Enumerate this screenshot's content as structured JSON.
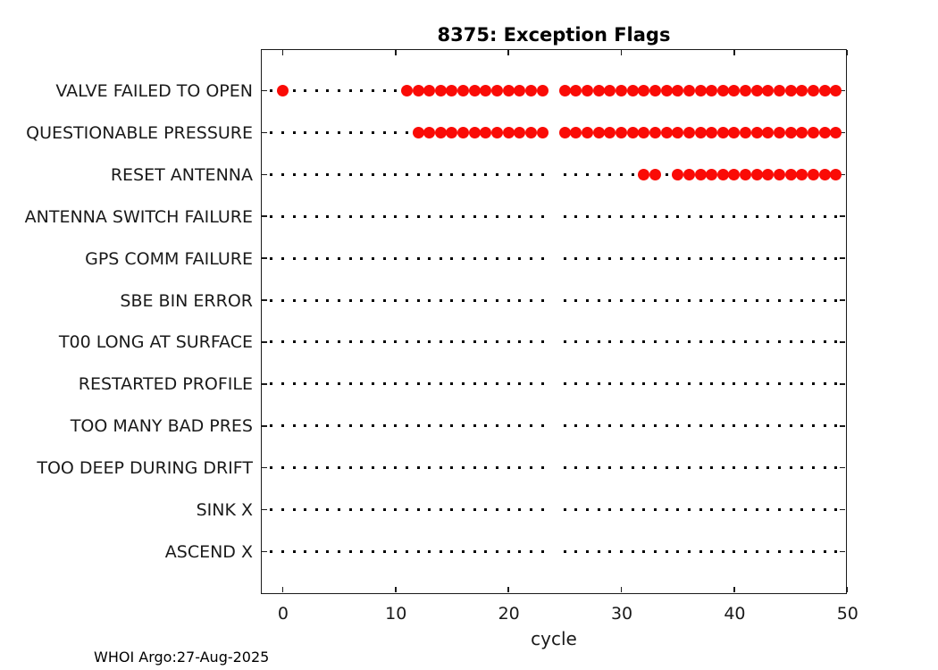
{
  "figure": {
    "footer": "WHOI Argo:27-Aug-2025"
  },
  "chart_data": {
    "type": "scatter",
    "title": "8375: Exception Flags",
    "xlabel": "cycle",
    "xlim": [
      -2,
      50
    ],
    "xticks": [
      0,
      10,
      20,
      30,
      40,
      50
    ],
    "xtick_labels": [
      "0",
      "10",
      "20",
      "30",
      "40",
      "50"
    ],
    "grid": "dotted horizontal baseline per category",
    "legend_position": "none",
    "marker_color": "#fa0b06",
    "baseline_color": "#000000",
    "axis_color": "#1a1a1a",
    "categories": [
      "VALVE FAILED TO OPEN",
      "QUESTIONABLE PRESSURE",
      "RESET ANTENNA",
      "ANTENNA SWITCH FAILURE",
      "GPS COMM FAILURE",
      "SBE BIN ERROR",
      "T00 LONG AT SURFACE",
      "RESTARTED PROFILE",
      "TOO MANY BAD PRES",
      "TOO DEEP DURING DRIFT",
      "SINK X",
      "ASCEND X"
    ],
    "baseline_cycles": [
      -1,
      0,
      1,
      2,
      3,
      4,
      5,
      6,
      7,
      8,
      9,
      10,
      11,
      12,
      13,
      14,
      15,
      16,
      17,
      18,
      19,
      20,
      21,
      22,
      23,
      25,
      26,
      27,
      28,
      29,
      30,
      31,
      32,
      33,
      34,
      35,
      36,
      37,
      38,
      39,
      40,
      41,
      42,
      43,
      44,
      45,
      46,
      47,
      48,
      49
    ],
    "series": [
      {
        "name": "VALVE FAILED TO OPEN",
        "cycles": [
          0,
          11,
          12,
          13,
          14,
          15,
          16,
          17,
          18,
          19,
          20,
          21,
          22,
          23,
          25,
          26,
          27,
          28,
          29,
          30,
          31,
          32,
          33,
          34,
          35,
          36,
          37,
          38,
          39,
          40,
          41,
          42,
          43,
          44,
          45,
          46,
          47,
          48,
          49
        ]
      },
      {
        "name": "QUESTIONABLE PRESSURE",
        "cycles": [
          12,
          13,
          14,
          15,
          16,
          17,
          18,
          19,
          20,
          21,
          22,
          23,
          25,
          26,
          27,
          28,
          29,
          30,
          31,
          32,
          33,
          34,
          35,
          36,
          37,
          38,
          39,
          40,
          41,
          42,
          43,
          44,
          45,
          46,
          47,
          48,
          49
        ]
      },
      {
        "name": "RESET ANTENNA",
        "cycles": [
          32,
          33,
          35,
          36,
          37,
          38,
          39,
          40,
          41,
          42,
          43,
          44,
          45,
          46,
          47,
          48,
          49
        ]
      },
      {
        "name": "ANTENNA SWITCH FAILURE",
        "cycles": []
      },
      {
        "name": "GPS COMM FAILURE",
        "cycles": []
      },
      {
        "name": "SBE BIN ERROR",
        "cycles": []
      },
      {
        "name": "T00 LONG AT SURFACE",
        "cycles": []
      },
      {
        "name": "RESTARTED PROFILE",
        "cycles": []
      },
      {
        "name": "TOO MANY BAD PRES",
        "cycles": []
      },
      {
        "name": "TOO DEEP DURING DRIFT",
        "cycles": []
      },
      {
        "name": "SINK X",
        "cycles": []
      },
      {
        "name": "ASCEND X",
        "cycles": []
      }
    ]
  }
}
